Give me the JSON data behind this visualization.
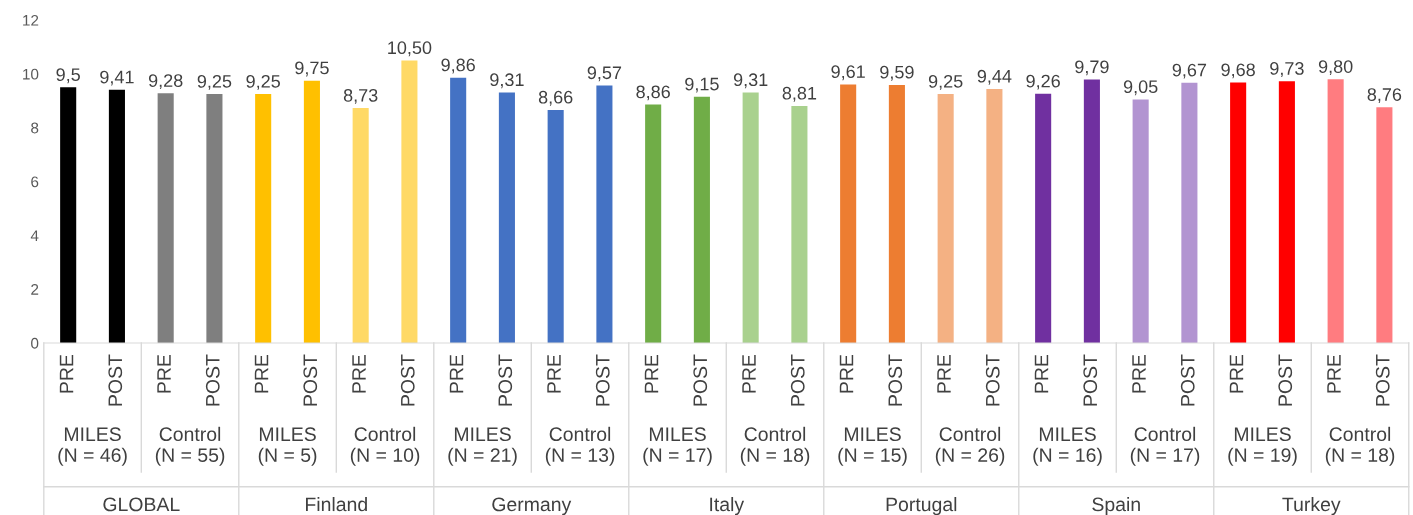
{
  "chart_data": {
    "type": "bar",
    "categories": [
      "PRE",
      "POST",
      "PRE",
      "POST",
      "PRE",
      "POST",
      "PRE",
      "POST",
      "PRE",
      "POST",
      "PRE",
      "POST",
      "PRE",
      "POST",
      "PRE",
      "POST",
      "PRE",
      "POST",
      "PRE",
      "POST",
      "PRE",
      "POST",
      "PRE",
      "POST",
      "PRE",
      "POST",
      "PRE",
      "POST"
    ],
    "values": [
      9.5,
      9.41,
      9.28,
      9.25,
      9.25,
      9.75,
      8.73,
      10.5,
      9.86,
      9.31,
      8.66,
      9.57,
      8.86,
      9.15,
      9.31,
      8.81,
      9.61,
      9.59,
      9.25,
      9.44,
      9.26,
      9.79,
      9.05,
      9.67,
      9.68,
      9.73,
      9.8,
      8.76
    ],
    "value_labels": [
      "9,5",
      "9,41",
      "9,28",
      "9,25",
      "9,25",
      "9,75",
      "8,73",
      "10,50",
      "9,86",
      "9,31",
      "8,66",
      "9,57",
      "8,86",
      "9,15",
      "9,31",
      "8,81",
      "9,61",
      "9,59",
      "9,25",
      "9,44",
      "9,26",
      "9,79",
      "9,05",
      "9,67",
      "9,68",
      "9,73",
      "9,80",
      "8,76"
    ],
    "colors": [
      "#000000",
      "#000000",
      "#7f7f7f",
      "#7f7f7f",
      "#ffc000",
      "#ffc000",
      "#ffd966",
      "#ffd966",
      "#4472c4",
      "#4472c4",
      "#4472c4",
      "#4472c4",
      "#70ad47",
      "#70ad47",
      "#a9d18e",
      "#a9d18e",
      "#ed7d31",
      "#ed7d31",
      "#f4b183",
      "#f4b183",
      "#7030a0",
      "#7030a0",
      "#b294d1",
      "#b294d1",
      "#ff0000",
      "#ff0000",
      "#ff7c80",
      "#ff7c80"
    ],
    "ylim": [
      0,
      12
    ],
    "yticks": [
      0,
      2,
      4,
      6,
      8,
      10,
      12
    ],
    "grid": false,
    "legend": false,
    "annotations": [
      "MILES\n(N = 46)",
      "Control\n(N = 55)",
      "MILES\n(N = 5)",
      "Control\n(N = 10)",
      "MILES\n(N = 21)",
      "Control\n(N = 13)",
      "MILES\n(N = 17)",
      "Control\n(N = 18)",
      "MILES\n(N = 15)",
      "Control\n(N = 26)",
      "MILES\n(N = 16)",
      "Control\n(N = 17)",
      "MILES\n(N = 19)",
      "Control\n(N = 18)",
      "GLOBAL",
      "Finland",
      "Germany",
      "Italy",
      "Portugal",
      "Spain",
      "Turkey"
    ]
  }
}
